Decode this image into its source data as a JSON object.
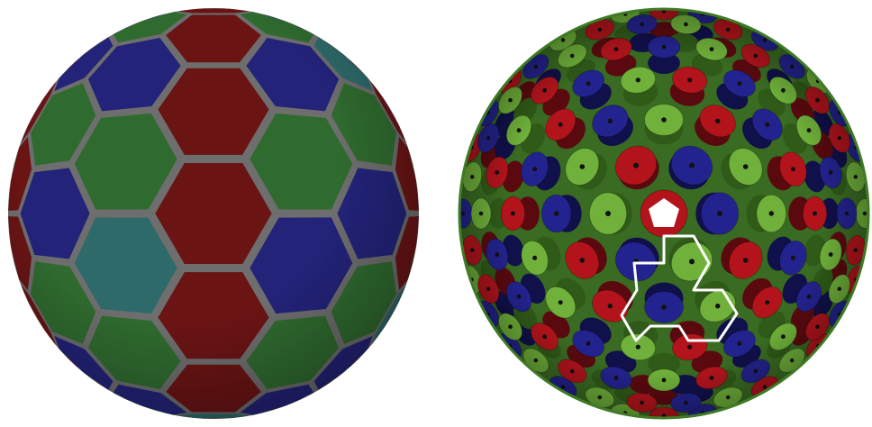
{
  "colors": {
    "background": "#ffffff",
    "hex_blue": "#23237a",
    "hex_green": "#2f6b2f",
    "hex_red": "#6b1414",
    "hex_teal": "#2e6a6a",
    "seam": "#6e6e6e",
    "cyl_red": "#b3141c",
    "cyl_green": "#6fb13a",
    "cyl_blue": "#23238f",
    "cyl_shadow_red": "#5a0a0e",
    "cyl_shadow_green": "#2f5a18",
    "cyl_shadow_blue": "#10104a",
    "highlight": "#ffffff"
  },
  "panels": {
    "left": {
      "kind": "faceted-sphere",
      "shape": "hexagon-tiling"
    },
    "right": {
      "kind": "cylinder-packing-sphere",
      "highlight": "white-outline-and-pentagon"
    }
  }
}
